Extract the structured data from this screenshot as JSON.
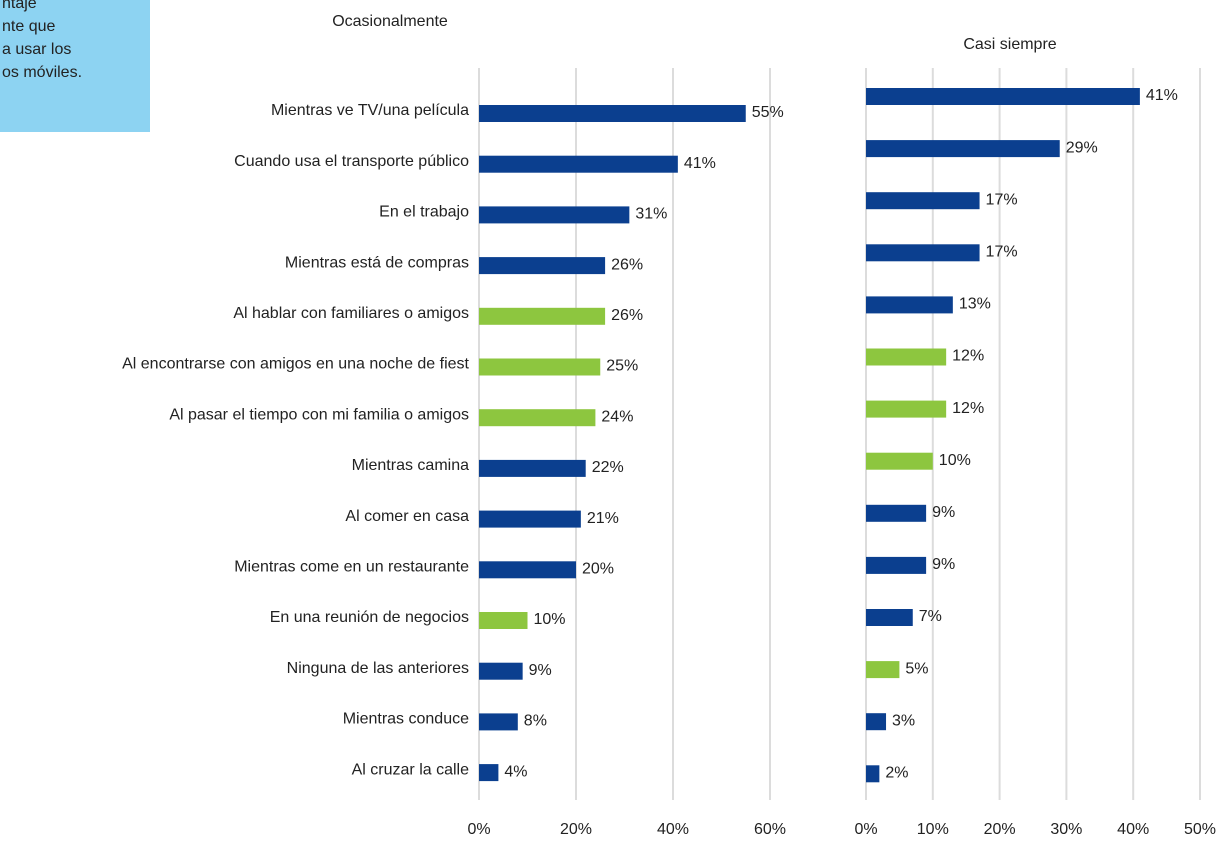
{
  "note": {
    "lines": [
      "ntaje",
      "nte que",
      "a usar los",
      "os móviles."
    ]
  },
  "chart_data": [
    {
      "type": "barh",
      "title": "Ocasionalmente",
      "categories": [
        "Mientras ve TV/una película",
        "Cuando usa el transporte público",
        "En el trabajo",
        "Mientras está de compras",
        "Al hablar con familiares o amigos",
        "Al encontrarse con amigos en una noche de fiest",
        "Al pasar el tiempo con mi familia o amigos",
        "Mientras camina",
        "Al comer en casa",
        "Mientras come en un restaurante",
        "En una reunión de negocios",
        "Ninguna de las anteriores",
        "Mientras conduce",
        "Al cruzar la calle"
      ],
      "values": [
        55,
        41,
        31,
        26,
        26,
        25,
        24,
        22,
        21,
        20,
        10,
        9,
        8,
        4
      ],
      "value_labels": [
        "55%",
        "41%",
        "31%",
        "26%",
        "26%",
        "25%",
        "24%",
        "22%",
        "21%",
        "20%",
        "10%",
        "9%",
        "8%",
        "4%"
      ],
      "colors": [
        "#0b3f8f",
        "#0b3f8f",
        "#0b3f8f",
        "#0b3f8f",
        "#8dc63f",
        "#8dc63f",
        "#8dc63f",
        "#0b3f8f",
        "#0b3f8f",
        "#0b3f8f",
        "#8dc63f",
        "#0b3f8f",
        "#0b3f8f",
        "#0b3f8f"
      ],
      "xlim": [
        0,
        60
      ],
      "xticks": [
        {
          "value": 0,
          "label": "0%"
        },
        {
          "value": 20,
          "label": "20%"
        },
        {
          "value": 40,
          "label": "40%"
        },
        {
          "value": 60,
          "label": "60%"
        }
      ],
      "grid": true
    },
    {
      "type": "barh",
      "title": "Casi siempre",
      "values": [
        41,
        29,
        17,
        17,
        13,
        12,
        12,
        10,
        9,
        9,
        7,
        5,
        3,
        2
      ],
      "value_labels": [
        "41%",
        "29%",
        "17%",
        "17%",
        "13%",
        "12%",
        "12%",
        "10%",
        "9%",
        "9%",
        "7%",
        "5%",
        "3%",
        "2%"
      ],
      "colors": [
        "#0b3f8f",
        "#0b3f8f",
        "#0b3f8f",
        "#0b3f8f",
        "#0b3f8f",
        "#8dc63f",
        "#8dc63f",
        "#8dc63f",
        "#0b3f8f",
        "#0b3f8f",
        "#0b3f8f",
        "#8dc63f",
        "#0b3f8f",
        "#0b3f8f"
      ],
      "xlim": [
        0,
        50
      ],
      "xticks": [
        {
          "value": 0,
          "label": "0%"
        },
        {
          "value": 10,
          "label": "10%"
        },
        {
          "value": 20,
          "label": "20%"
        },
        {
          "value": 30,
          "label": "30%"
        },
        {
          "value": 40,
          "label": "40%"
        },
        {
          "value": 50,
          "label": "50%"
        }
      ],
      "grid": true
    }
  ]
}
